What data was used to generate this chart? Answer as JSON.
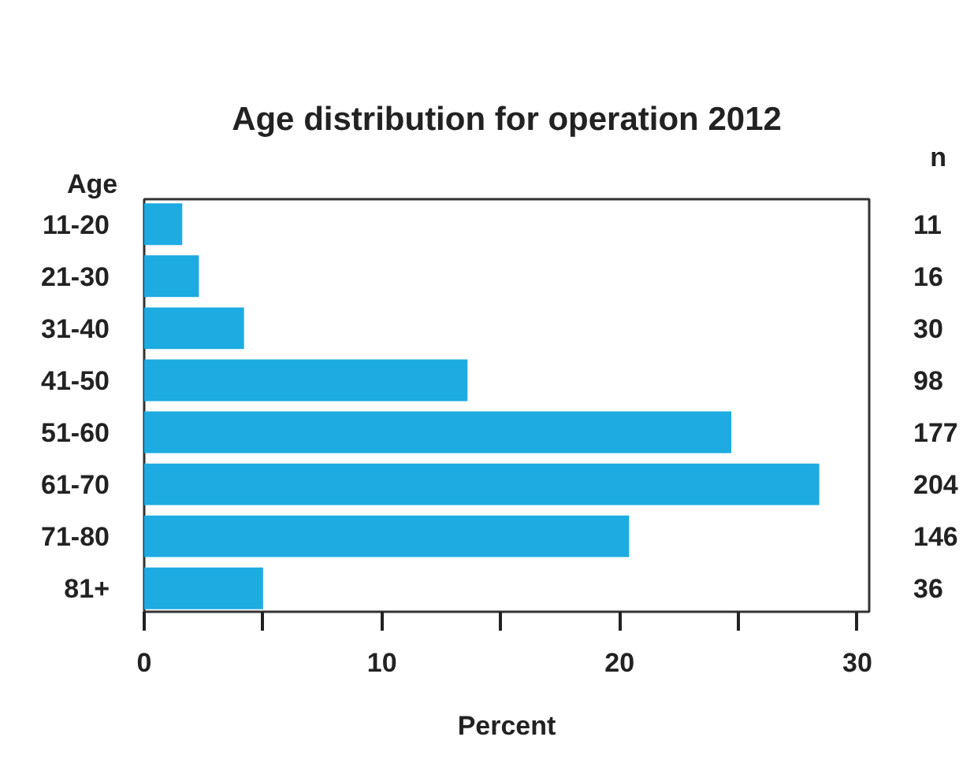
{
  "chart_data": {
    "type": "bar",
    "orientation": "horizontal",
    "title": "Age distribution for operation 2012",
    "xlabel": "Percent",
    "ylabel": "Age",
    "categories": [
      "11-20",
      "21-30",
      "31-40",
      "41-50",
      "51-60",
      "61-70",
      "71-80",
      "81+"
    ],
    "values": [
      1.6,
      2.3,
      4.2,
      13.6,
      24.7,
      28.4,
      20.4,
      5.0
    ],
    "color": "#1dabe2",
    "xlim": [
      0,
      30.5
    ],
    "xticks": [
      0,
      {
        "value": 5,
        "label": null
      },
      10,
      {
        "value": 15,
        "label": null
      },
      20,
      {
        "value": 25,
        "label": null
      },
      30
    ],
    "grid": false,
    "annotations": [
      "n",
      "11",
      "16",
      "30",
      "98",
      "177",
      "204",
      "146",
      "36"
    ]
  }
}
